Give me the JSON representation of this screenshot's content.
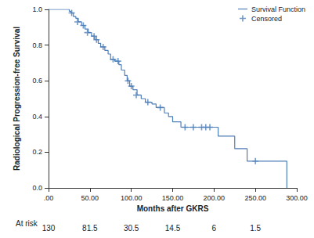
{
  "chart_data": {
    "type": "survival",
    "xlabel": "Months after GKRS",
    "ylabel": "Radiological Progression-free Survival",
    "xlim": [
      0,
      300
    ],
    "xticks": [
      {
        "value": 0,
        "label": ".00"
      },
      {
        "value": 50,
        "label": "50.00"
      },
      {
        "value": 100,
        "label": "100.00"
      },
      {
        "value": 150,
        "label": "150.00"
      },
      {
        "value": 200,
        "label": "200.00"
      },
      {
        "value": 250,
        "label": "250.00"
      },
      {
        "value": 300,
        "label": "300.00"
      }
    ],
    "ylim": [
      0,
      1
    ],
    "yticks": [
      {
        "value": 0,
        "label": "0.0"
      },
      0.2,
      0.4,
      0.6,
      0.8,
      {
        "value": 1,
        "label": "1.0"
      }
    ],
    "grid": false,
    "legend": "top-right",
    "series": [
      {
        "name": "Survival Function",
        "type": "line",
        "line_style": "step",
        "color": "#4f7fb8",
        "x": [
          0,
          25,
          27,
          30,
          33,
          36,
          40,
          44,
          48,
          52,
          56,
          60,
          63,
          68,
          72,
          75,
          80,
          85,
          88,
          92,
          95,
          98,
          102,
          107,
          112,
          117,
          125,
          130,
          140,
          145,
          150,
          160,
          205,
          225,
          240,
          288
        ],
        "values": [
          1.0,
          0.99,
          0.98,
          0.96,
          0.95,
          0.93,
          0.91,
          0.89,
          0.87,
          0.85,
          0.83,
          0.81,
          0.79,
          0.77,
          0.75,
          0.72,
          0.71,
          0.69,
          0.66,
          0.63,
          0.6,
          0.57,
          0.55,
          0.52,
          0.5,
          0.48,
          0.47,
          0.45,
          0.42,
          0.4,
          0.37,
          0.34,
          0.29,
          0.22,
          0.15,
          0.0
        ]
      },
      {
        "name": "Censored",
        "type": "scatter",
        "marker": "plus",
        "color": "#4f7fb8",
        "x": [
          28,
          35,
          42,
          47,
          55,
          58,
          66,
          78,
          84,
          96,
          100,
          106,
          120,
          135,
          165,
          175,
          185,
          190,
          195,
          250
        ],
        "values": [
          0.98,
          0.93,
          0.91,
          0.87,
          0.85,
          0.83,
          0.79,
          0.72,
          0.71,
          0.6,
          0.57,
          0.52,
          0.48,
          0.45,
          0.34,
          0.34,
          0.34,
          0.34,
          0.34,
          0.15
        ]
      }
    ],
    "at_risk": {
      "label": "At risk",
      "x": [
        0,
        50,
        100,
        150,
        200,
        250
      ],
      "values": [
        130,
        81.5,
        30.5,
        14.5,
        6,
        1.5
      ]
    }
  }
}
